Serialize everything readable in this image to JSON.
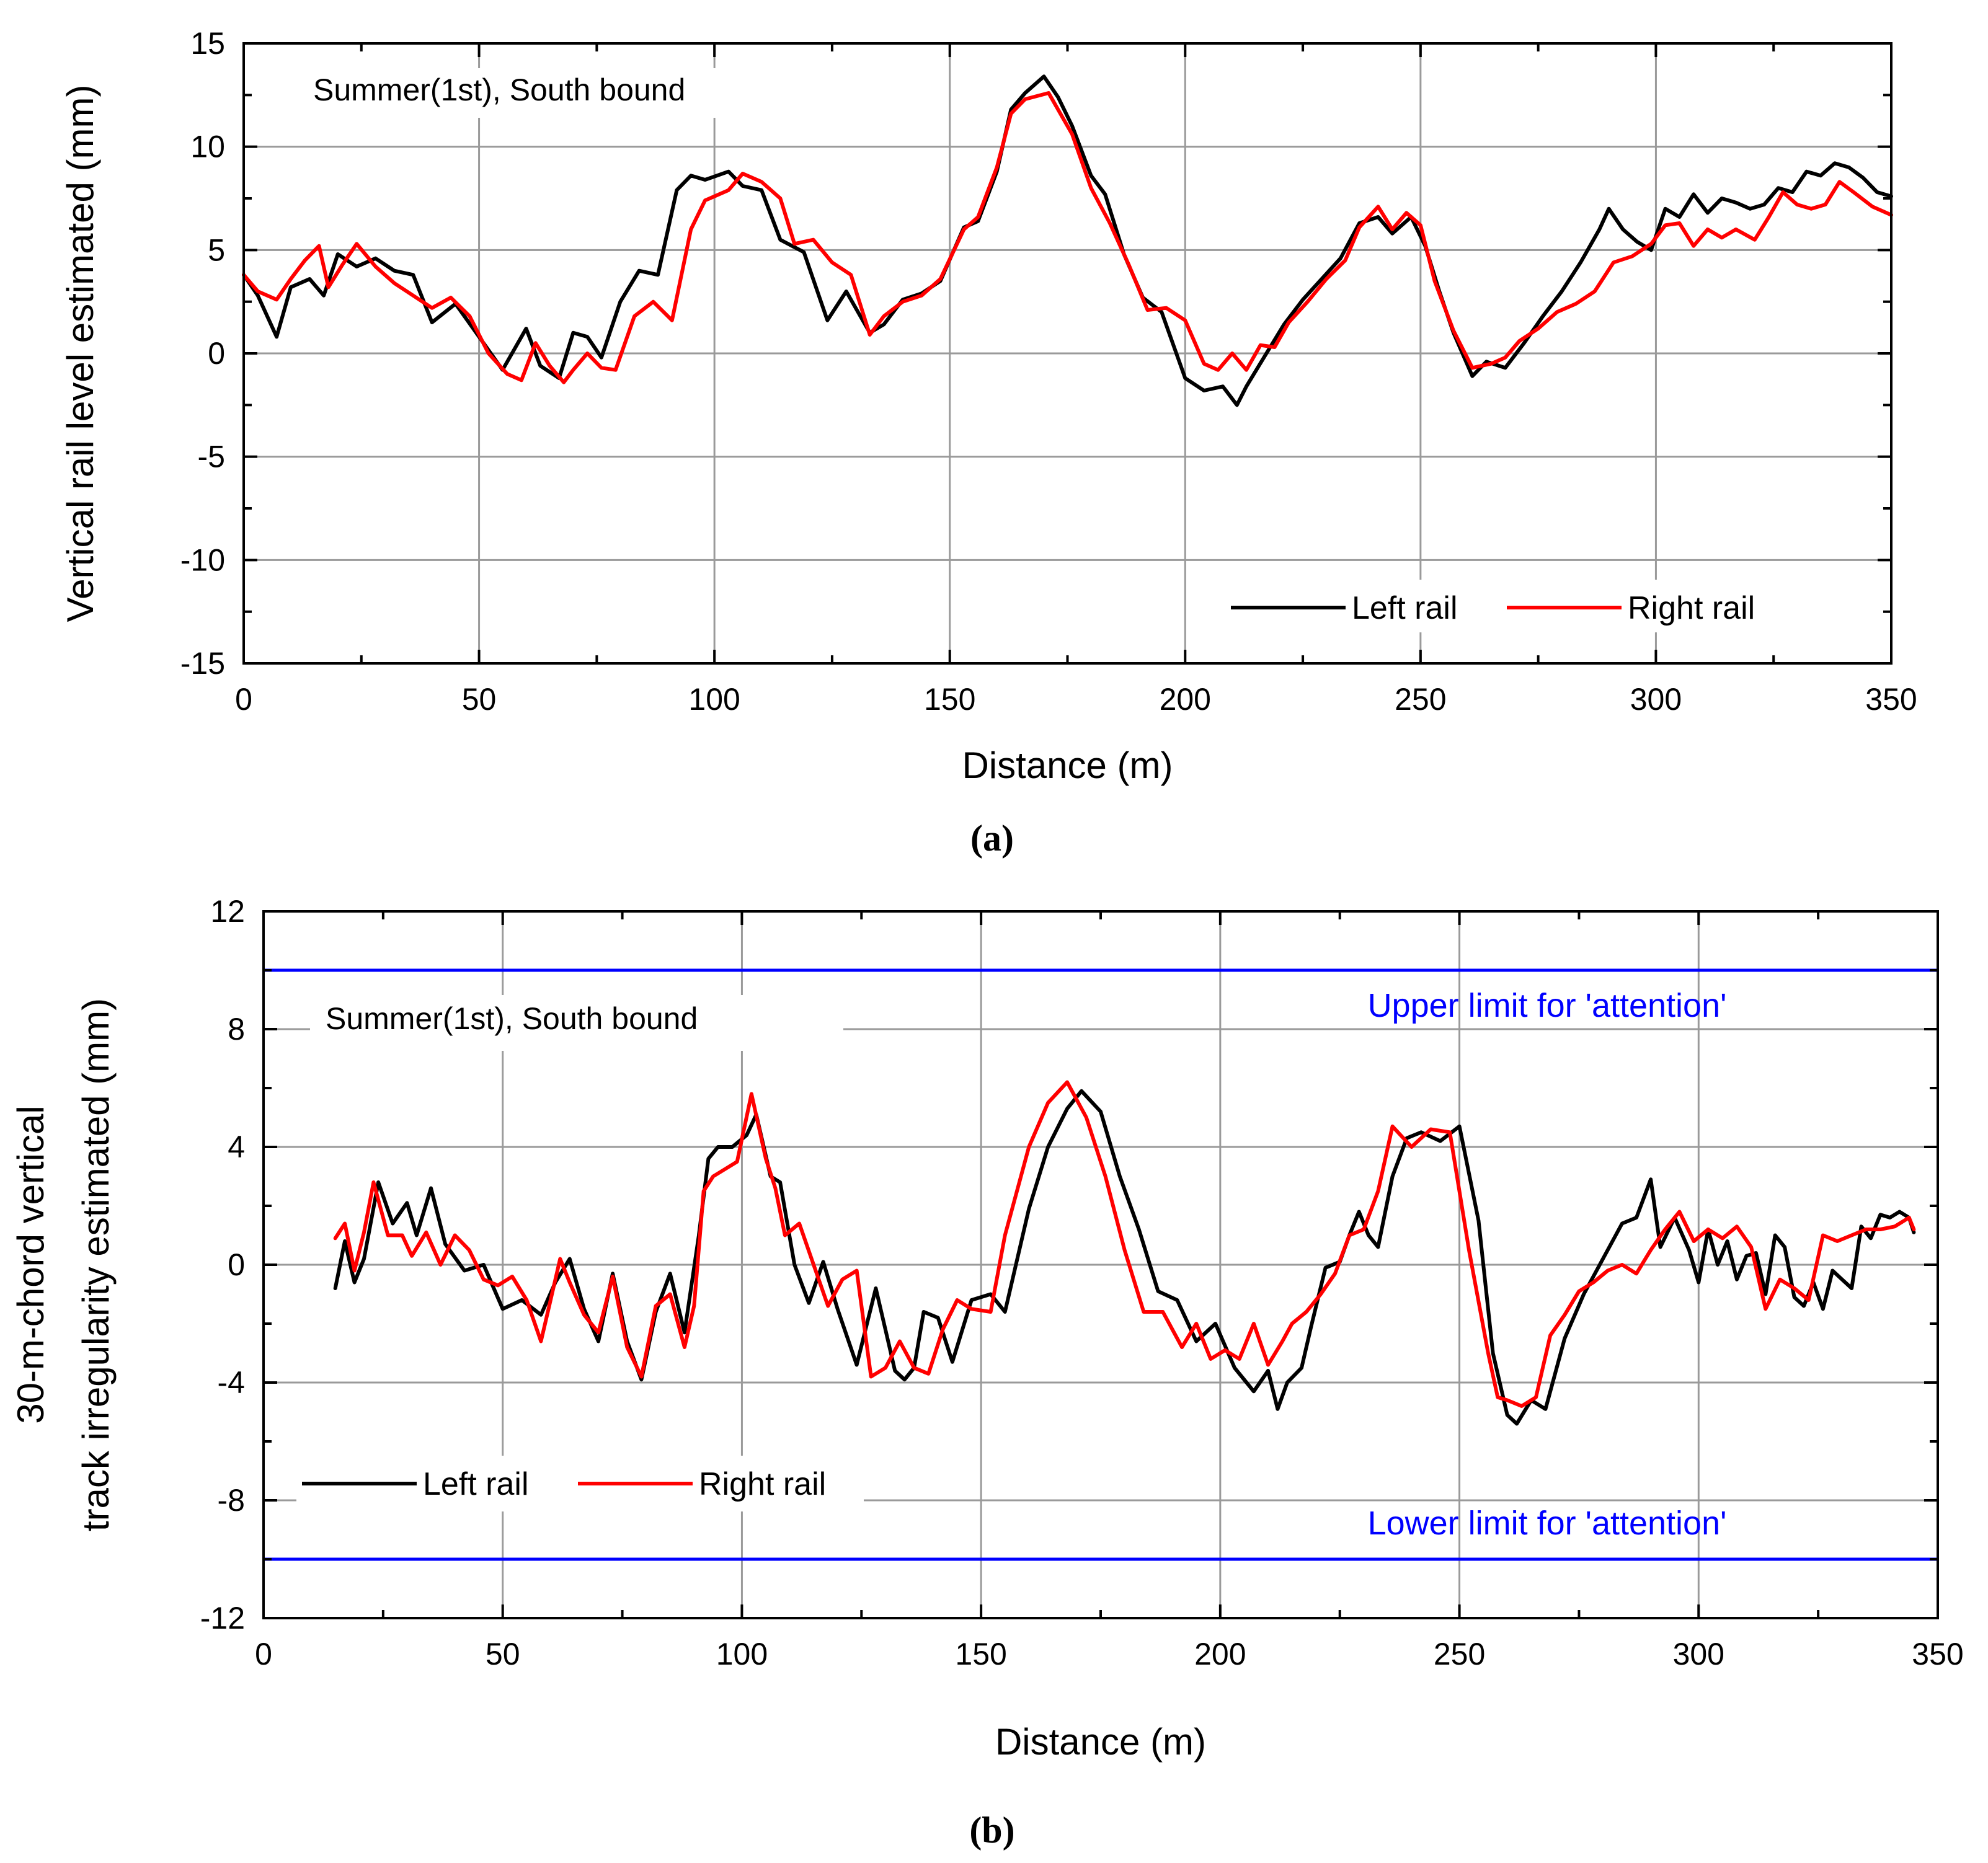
{
  "chart_data": [
    {
      "id": "a",
      "type": "line",
      "caption": "(a)",
      "title": "",
      "annotation": "Summer(1st), South bound",
      "xlabel": "Distance (m)",
      "ylabel": [
        "Vertical rail level estimated (mm)"
      ],
      "xlim": [
        0,
        350
      ],
      "ylim": [
        -15,
        15
      ],
      "xticks": [
        0,
        50,
        100,
        150,
        200,
        250,
        300,
        350
      ],
      "yticks": [
        -15,
        -10,
        -5,
        0,
        5,
        10,
        15
      ],
      "grid": true,
      "legend_position": "bottom-right",
      "reference_lines": [],
      "series": [
        {
          "name": "Left rail",
          "color": "#000000",
          "x": [
            0,
            3,
            7,
            10,
            14,
            17,
            20,
            24,
            28,
            32,
            36,
            40,
            45,
            50,
            55,
            60,
            63,
            67,
            70,
            73,
            76,
            80,
            84,
            88,
            92,
            95,
            98,
            103,
            106,
            110,
            114,
            119,
            124,
            128,
            133,
            136,
            140,
            144,
            148,
            153,
            156,
            160,
            163,
            166,
            170,
            173,
            176,
            180,
            183,
            187,
            191,
            195,
            200,
            204,
            208,
            211,
            213,
            217,
            221,
            225,
            229,
            233,
            237,
            241,
            244,
            248,
            251,
            254,
            257,
            261,
            264,
            268,
            272,
            276,
            280,
            284,
            288,
            290,
            293,
            296,
            299,
            302,
            305,
            308,
            311,
            314,
            317,
            320,
            323,
            326,
            329,
            332,
            335,
            338,
            341,
            344,
            347,
            350
          ],
          "values": [
            3.8,
            2.8,
            0.8,
            3.2,
            3.6,
            2.8,
            4.8,
            4.2,
            4.6,
            4.0,
            3.8,
            1.5,
            2.4,
            0.8,
            -0.8,
            1.2,
            -0.6,
            -1.2,
            1.0,
            0.8,
            -0.2,
            2.5,
            4.0,
            3.8,
            7.9,
            8.6,
            8.4,
            8.8,
            8.1,
            7.9,
            5.5,
            4.9,
            1.6,
            3.0,
            1.0,
            1.4,
            2.6,
            2.9,
            3.5,
            6.1,
            6.4,
            8.8,
            11.8,
            12.6,
            13.4,
            12.4,
            11.0,
            8.6,
            7.7,
            4.8,
            2.7,
            2.0,
            -1.2,
            -1.8,
            -1.6,
            -2.5,
            -1.6,
            -0.1,
            1.4,
            2.6,
            3.6,
            4.6,
            6.3,
            6.6,
            5.8,
            6.6,
            5.2,
            3.0,
            1.0,
            -1.1,
            -0.4,
            -0.7,
            0.5,
            1.8,
            3.0,
            4.4,
            6.0,
            7.0,
            6.0,
            5.4,
            5.0,
            7.0,
            6.6,
            7.7,
            6.8,
            7.5,
            7.3,
            7.0,
            7.2,
            8.0,
            7.8,
            8.8,
            8.6,
            9.2,
            9.0,
            8.5,
            7.8,
            7.6
          ]
        },
        {
          "name": "Right rail",
          "color": "#ff0000",
          "x": [
            0,
            3,
            7,
            10,
            13,
            16,
            18,
            21,
            24,
            28,
            32,
            36,
            40,
            44,
            48,
            52,
            56,
            59,
            62,
            65,
            68,
            70,
            73,
            76,
            79,
            83,
            87,
            91,
            95,
            98,
            103,
            106,
            110,
            114,
            117,
            121,
            125,
            129,
            133,
            136,
            140,
            144,
            148,
            153,
            156,
            160,
            163,
            166,
            171,
            176,
            180,
            184,
            188,
            192,
            196,
            200,
            204,
            207,
            210,
            213,
            216,
            219,
            222,
            226,
            230,
            234,
            237,
            241,
            244,
            247,
            250,
            253,
            257,
            261,
            265,
            268,
            271,
            275,
            279,
            283,
            287,
            291,
            295,
            299,
            302,
            305,
            308,
            311,
            314,
            317,
            321,
            324,
            327,
            330,
            333,
            336,
            339,
            342,
            346,
            350
          ],
          "values": [
            3.8,
            3.0,
            2.6,
            3.6,
            4.5,
            5.2,
            3.2,
            4.3,
            5.3,
            4.2,
            3.4,
            2.8,
            2.2,
            2.7,
            1.8,
            0.0,
            -1.0,
            -1.3,
            0.5,
            -0.6,
            -1.4,
            -0.8,
            0.0,
            -0.7,
            -0.8,
            1.8,
            2.5,
            1.6,
            6.0,
            7.4,
            7.9,
            8.7,
            8.3,
            7.5,
            5.3,
            5.5,
            4.4,
            3.8,
            0.9,
            1.8,
            2.5,
            2.8,
            3.6,
            6.0,
            6.6,
            9.0,
            11.6,
            12.3,
            12.6,
            10.6,
            8.0,
            6.3,
            4.3,
            2.1,
            2.2,
            1.6,
            -0.5,
            -0.8,
            0.0,
            -0.8,
            0.4,
            0.3,
            1.5,
            2.5,
            3.6,
            4.5,
            6.1,
            7.1,
            6.0,
            6.8,
            6.2,
            3.5,
            1.1,
            -0.7,
            -0.5,
            -0.2,
            0.6,
            1.2,
            2.0,
            2.4,
            3.0,
            4.4,
            4.7,
            5.3,
            6.2,
            6.3,
            5.2,
            6.0,
            5.6,
            6.0,
            5.5,
            6.6,
            7.8,
            7.2,
            7.0,
            7.2,
            8.3,
            7.8,
            7.1,
            6.7
          ]
        }
      ]
    },
    {
      "id": "b",
      "type": "line",
      "caption": "(b)",
      "title": "",
      "annotation": "Summer(1st), South bound",
      "xlabel": "Distance (m)",
      "ylabel": [
        "30-m-chord vertical",
        "track irregularity estimated (mm)"
      ],
      "xlim": [
        0,
        350
      ],
      "ylim": [
        -12,
        12
      ],
      "xticks": [
        0,
        50,
        100,
        150,
        200,
        250,
        300,
        350
      ],
      "yticks": [
        -12,
        -8,
        -4,
        0,
        4,
        8,
        12
      ],
      "grid": true,
      "legend_position": "bottom-left",
      "reference_lines": [
        {
          "y": 10,
          "label": "Upper limit for 'attention'",
          "color": "#0000ff"
        },
        {
          "y": -10,
          "label": "Lower limit for 'attention'",
          "color": "#0000ff"
        }
      ],
      "series": [
        {
          "name": "Left rail",
          "color": "#000000",
          "x": [
            15,
            17,
            19,
            21,
            24,
            27,
            30,
            32,
            35,
            38,
            42,
            46,
            50,
            54,
            58,
            61,
            64,
            67,
            70,
            73,
            76,
            79,
            82,
            85,
            88,
            91,
            93,
            95,
            98,
            101,
            103,
            106,
            108,
            111,
            114,
            117,
            120,
            124,
            128,
            130,
            132,
            134,
            136,
            138,
            141,
            144,
            148,
            152,
            155,
            160,
            164,
            168,
            171,
            175,
            179,
            183,
            187,
            191,
            195,
            199,
            203,
            207,
            210,
            212,
            214,
            217,
            219,
            222,
            225,
            227,
            229,
            231,
            233,
            236,
            239,
            242,
            246,
            250,
            254,
            257,
            260,
            262,
            265,
            268,
            272,
            276,
            280,
            284,
            287,
            290,
            292,
            295,
            298,
            300,
            302,
            304,
            306,
            308,
            310,
            312,
            314,
            316,
            318,
            320,
            322,
            324,
            326,
            328,
            330,
            332,
            334,
            336,
            338,
            340,
            342,
            344,
            345
          ],
          "values": [
            -0.8,
            0.8,
            -0.6,
            0.2,
            2.8,
            1.4,
            2.1,
            1.0,
            2.6,
            0.7,
            -0.2,
            0.0,
            -1.5,
            -1.2,
            -1.7,
            -0.6,
            0.2,
            -1.5,
            -2.6,
            -0.3,
            -2.6,
            -3.9,
            -1.6,
            -0.3,
            -2.3,
            1.0,
            3.6,
            4.0,
            4.0,
            4.4,
            5.1,
            3.0,
            2.8,
            0.0,
            -1.3,
            0.1,
            -1.5,
            -3.4,
            -0.8,
            -2.2,
            -3.6,
            -3.9,
            -3.5,
            -1.6,
            -1.8,
            -3.3,
            -1.2,
            -1.0,
            -1.6,
            1.9,
            4.0,
            5.3,
            5.9,
            5.2,
            3.0,
            1.2,
            -0.9,
            -1.2,
            -2.6,
            -2.0,
            -3.5,
            -4.3,
            -3.6,
            -4.9,
            -4.0,
            -3.5,
            -2.1,
            -0.1,
            0.1,
            1.0,
            1.8,
            1.0,
            0.6,
            3.0,
            4.3,
            4.5,
            4.2,
            4.7,
            1.5,
            -3.0,
            -5.1,
            -5.4,
            -4.6,
            -4.9,
            -2.5,
            -1.0,
            0.2,
            1.4,
            1.6,
            2.9,
            0.6,
            1.6,
            0.5,
            -0.6,
            1.2,
            0.0,
            0.8,
            -0.5,
            0.3,
            0.4,
            -1.0,
            1.0,
            0.6,
            -1.1,
            -1.4,
            -0.6,
            -1.5,
            -0.2,
            -0.5,
            -0.8,
            1.3,
            0.9,
            1.7,
            1.6,
            1.8,
            1.6,
            1.1
          ]
        },
        {
          "name": "Right rail",
          "color": "#ff0000",
          "x": [
            15,
            17,
            19,
            21,
            23,
            26,
            29,
            31,
            34,
            37,
            40,
            43,
            46,
            49,
            52,
            55,
            58,
            60,
            62,
            64,
            67,
            70,
            73,
            76,
            79,
            82,
            85,
            88,
            90,
            92,
            94,
            96,
            99,
            102,
            105,
            107,
            109,
            112,
            115,
            118,
            121,
            124,
            127,
            130,
            133,
            136,
            139,
            142,
            145,
            148,
            152,
            155,
            160,
            164,
            168,
            172,
            176,
            180,
            184,
            188,
            192,
            195,
            198,
            201,
            204,
            207,
            210,
            213,
            215,
            218,
            221,
            224,
            227,
            230,
            233,
            236,
            240,
            244,
            248,
            252,
            256,
            258,
            260,
            263,
            266,
            269,
            272,
            275,
            278,
            281,
            284,
            287,
            290,
            293,
            296,
            299,
            302,
            305,
            308,
            311,
            314,
            317,
            320,
            323,
            326,
            329,
            332,
            335,
            338,
            341,
            344,
            345
          ],
          "values": [
            0.9,
            1.4,
            -0.2,
            1.1,
            2.8,
            1.0,
            1.0,
            0.3,
            1.1,
            0.0,
            1.0,
            0.5,
            -0.5,
            -0.7,
            -0.4,
            -1.2,
            -2.6,
            -1.2,
            0.2,
            -0.6,
            -1.7,
            -2.3,
            -0.4,
            -2.8,
            -3.8,
            -1.4,
            -1.0,
            -2.8,
            -1.4,
            2.5,
            3.0,
            3.2,
            3.5,
            5.8,
            3.6,
            2.6,
            1.0,
            1.4,
            0.0,
            -1.4,
            -0.5,
            -0.2,
            -3.8,
            -3.5,
            -2.6,
            -3.5,
            -3.7,
            -2.2,
            -1.2,
            -1.5,
            -1.6,
            1.0,
            4.0,
            5.5,
            6.2,
            5.0,
            3.0,
            0.5,
            -1.6,
            -1.6,
            -2.8,
            -2.0,
            -3.2,
            -2.9,
            -3.2,
            -2.0,
            -3.4,
            -2.6,
            -2.0,
            -1.6,
            -1.0,
            -0.3,
            1.0,
            1.2,
            2.5,
            4.7,
            4.0,
            4.6,
            4.5,
            0.5,
            -3.0,
            -4.5,
            -4.6,
            -4.8,
            -4.5,
            -2.4,
            -1.7,
            -0.9,
            -0.6,
            -0.2,
            0.0,
            -0.3,
            0.5,
            1.2,
            1.8,
            0.8,
            1.2,
            0.9,
            1.3,
            0.6,
            -1.5,
            -0.5,
            -0.8,
            -1.2,
            1.0,
            0.8,
            1.0,
            1.2,
            1.2,
            1.3,
            1.6,
            1.2
          ]
        }
      ]
    }
  ]
}
